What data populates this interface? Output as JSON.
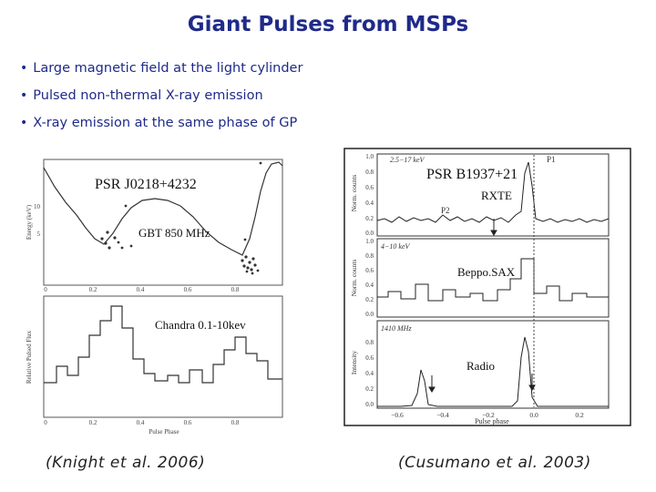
{
  "slide": {
    "title": "Giant Pulses from MSPs",
    "bullets": [
      "Large magnetic field at the light cylinder",
      "Pulsed non-thermal X-ray emission",
      "X-ray emission at the same phase of  GP"
    ],
    "bullet_symbol": "•",
    "citations": {
      "left": "(Knight et al. 2006)",
      "right": "(Cusumano et al. 2003)"
    },
    "colors": {
      "title": "#1f2a8a",
      "text": "#1f2a8a"
    }
  },
  "left_figure": {
    "overlay_labels": {
      "source": "PSR J0218+4232",
      "radio": "GBT 850 MHz",
      "xray": "Chandra 0.1-10kev"
    },
    "top_panel": {
      "ylabel": "Energy (keV)",
      "y_ticks": [
        "10",
        "5"
      ],
      "x_ticks": [
        "0",
        "0.2",
        "0.4",
        "0.6",
        "0.8"
      ]
    },
    "bottom_panel": {
      "ylabel": "Relative Pulsed Flux",
      "xlabel": "Pulse Phase",
      "x_ticks": [
        "0",
        "0.2",
        "0.4",
        "0.6",
        "0.8"
      ]
    }
  },
  "right_figure": {
    "overlay_labels": {
      "source": "PSR B1937+21",
      "rxte": "RXTE",
      "beppo": "Beppo.SAX",
      "radio": "Radio"
    },
    "panel_annotations": {
      "p1": "P1",
      "p2": "P2",
      "band1": "2.5−17 keV",
      "band2": "4−10 keV",
      "band3": "1410 MHz"
    },
    "ylabels": {
      "top": "Norm. counts",
      "middle": "Norm. counts",
      "bottom": "Intensity"
    },
    "y_ticks_top": [
      "1.0",
      "0.8",
      "0.6",
      "0.4",
      "0.2",
      "0.0"
    ],
    "y_ticks_mid": [
      "1.0",
      "0.8",
      "0.6",
      "0.4",
      "0.2",
      "0.0"
    ],
    "y_ticks_bottom": [
      "0.8",
      "0.6",
      "0.4",
      "0.2",
      "0.0"
    ],
    "x_ticks": [
      "−0.6",
      "−0.4",
      "−0.2",
      "0.0",
      "0.2"
    ],
    "xlabel": "Pulse phase"
  }
}
